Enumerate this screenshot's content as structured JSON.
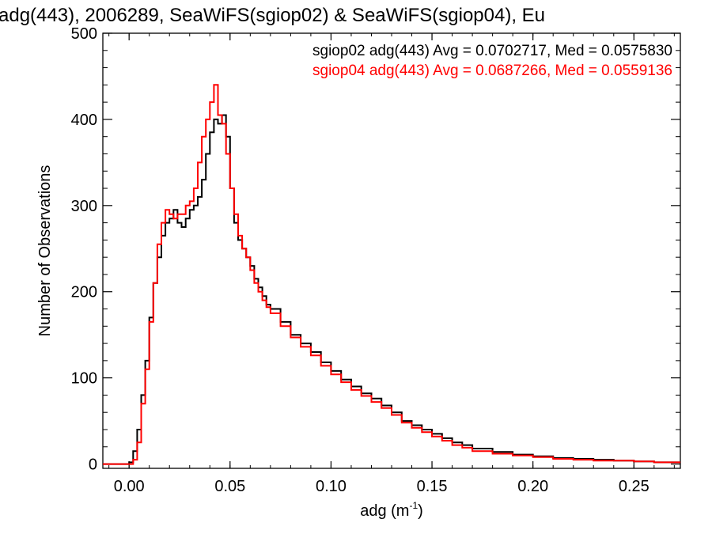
{
  "chart_data": {
    "type": "line",
    "title": "adg(443), 2006289, SeaWiFS(sgiop02) & SeaWiFS(sgiop04), Eu",
    "xlabel": "adg (m",
    "xlabel_sup": "-1",
    "xlabel_close": ")",
    "ylabel": "Number of Observations",
    "xlim": [
      -0.013,
      0.273
    ],
    "ylim": [
      -5,
      500
    ],
    "xticks": [
      0.0,
      0.05,
      0.1,
      0.15,
      0.2,
      0.25
    ],
    "xtick_labels": [
      "0.00",
      "0.05",
      "0.10",
      "0.15",
      "0.20",
      "0.25"
    ],
    "yticks": [
      0,
      100,
      200,
      300,
      400,
      500
    ],
    "ytick_labels": [
      "0",
      "100",
      "200",
      "300",
      "400",
      "500"
    ],
    "grid": false,
    "step": "histogram",
    "legend_placement": "top-right",
    "legend": [
      "sgiop02 adg(443) Avg = 0.0702717, Med = 0.0575830",
      "sgiop04 adg(443) Avg = 0.0687266, Med = 0.0559136"
    ],
    "x": [
      -0.013,
      -0.004,
      0.0,
      0.002,
      0.004,
      0.006,
      0.008,
      0.01,
      0.012,
      0.014,
      0.016,
      0.018,
      0.02,
      0.022,
      0.024,
      0.026,
      0.028,
      0.03,
      0.032,
      0.034,
      0.036,
      0.038,
      0.04,
      0.042,
      0.044,
      0.046,
      0.048,
      0.05,
      0.052,
      0.054,
      0.056,
      0.058,
      0.06,
      0.062,
      0.064,
      0.066,
      0.068,
      0.07,
      0.075,
      0.08,
      0.085,
      0.09,
      0.095,
      0.1,
      0.105,
      0.11,
      0.115,
      0.12,
      0.125,
      0.13,
      0.135,
      0.14,
      0.145,
      0.15,
      0.155,
      0.16,
      0.165,
      0.17,
      0.18,
      0.19,
      0.2,
      0.21,
      0.22,
      0.23,
      0.24,
      0.25,
      0.26,
      0.273
    ],
    "series": [
      {
        "name": "sgiop02 adg(443) Avg = 0.0702717, Med = 0.0575830",
        "color": "#000000",
        "values": [
          0,
          0,
          2,
          15,
          40,
          80,
          120,
          170,
          210,
          240,
          265,
          280,
          285,
          295,
          280,
          275,
          285,
          295,
          300,
          310,
          330,
          360,
          385,
          400,
          395,
          405,
          380,
          320,
          280,
          260,
          250,
          240,
          230,
          215,
          205,
          195,
          185,
          180,
          165,
          150,
          140,
          130,
          118,
          108,
          98,
          90,
          82,
          76,
          68,
          60,
          50,
          45,
          40,
          35,
          30,
          25,
          22,
          18,
          14,
          11,
          9,
          7,
          6,
          5,
          4,
          3,
          2,
          2
        ]
      },
      {
        "name": "sgiop04 adg(443) Avg = 0.0687266, Med = 0.0559136",
        "color": "#ff0000",
        "values": [
          0,
          0,
          0,
          5,
          25,
          70,
          110,
          165,
          210,
          255,
          280,
          295,
          290,
          285,
          290,
          290,
          300,
          305,
          320,
          350,
          380,
          400,
          420,
          440,
          405,
          395,
          360,
          320,
          290,
          265,
          250,
          240,
          225,
          210,
          200,
          190,
          182,
          175,
          160,
          147,
          136,
          126,
          114,
          104,
          95,
          86,
          79,
          72,
          65,
          57,
          48,
          42,
          37,
          32,
          27,
          22,
          19,
          15,
          12,
          10,
          8,
          6,
          5,
          4,
          4,
          3,
          2,
          2
        ]
      }
    ]
  }
}
